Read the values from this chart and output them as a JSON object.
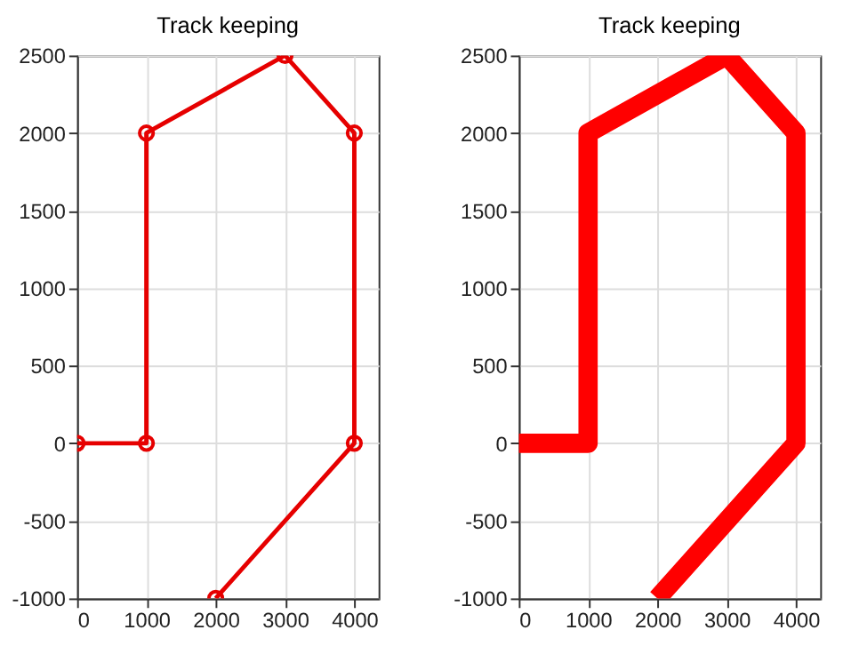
{
  "chart_data": [
    {
      "type": "line",
      "title": "Track keeping",
      "x": [
        0,
        1000,
        1000,
        3000,
        4000,
        4000,
        2000
      ],
      "series": [
        {
          "color": "#e60000",
          "values": [
            0,
            0,
            2000,
            2500,
            2000,
            0,
            -1000
          ]
        }
      ],
      "xlim": [
        0,
        4350
      ],
      "ylim": [
        -1000,
        2500
      ],
      "xticks": [
        0,
        1000,
        2000,
        3000,
        4000
      ],
      "yticks": [
        -1000,
        -500,
        0,
        500,
        1000,
        1500,
        2000,
        2500
      ],
      "grid": true,
      "marker": "circle",
      "line_style": "solid"
    },
    {
      "type": "line",
      "title": "Track keeping",
      "x": [
        0,
        1000,
        1000,
        3000,
        4000,
        4000,
        2000
      ],
      "series": [
        {
          "color": "#ff0000",
          "values": [
            0,
            0,
            2000,
            2500,
            2000,
            0,
            -1000
          ]
        }
      ],
      "xlim": [
        0,
        4350
      ],
      "ylim": [
        -1000,
        2500
      ],
      "xticks": [
        0,
        1000,
        2000,
        3000,
        4000
      ],
      "yticks": [
        -1000,
        -500,
        0,
        500,
        1000,
        1500,
        2000,
        2500
      ],
      "grid": true,
      "marker": "none",
      "line_style": "solid"
    }
  ]
}
